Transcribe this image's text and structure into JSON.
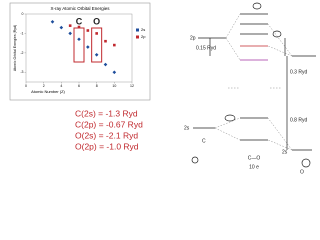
{
  "chart_data": {
    "type": "scatter",
    "title": "X-ray Atomic Orbital Energies",
    "x_label": "Atomic Number (Z)",
    "y_label": "Atomic Orbital Energies (Ryd)",
    "x": [
      3,
      4,
      5,
      6,
      7,
      8,
      9,
      10
    ],
    "series": [
      {
        "name": "2s",
        "color": "#1f4e9c",
        "values": [
          -0.4,
          -0.7,
          -1.0,
          -1.3,
          -1.7,
          -2.1,
          -2.6,
          -3.0
        ]
      },
      {
        "name": "2p",
        "color": "#c0282d",
        "values": [
          null,
          null,
          -0.6,
          -0.67,
          -0.85,
          -1.0,
          -1.4,
          -1.6
        ]
      }
    ],
    "annotations": [
      {
        "text": "C",
        "x": 6
      },
      {
        "text": "O",
        "x": 8
      }
    ],
    "xlim": [
      0,
      12
    ],
    "xticks": [
      0,
      2,
      4,
      6,
      8,
      10,
      12
    ],
    "ylim": [
      -3.5,
      0
    ],
    "yticks": [
      -3,
      -2,
      -1,
      0
    ],
    "legend": "right"
  },
  "energies": [
    "C(2s) = -1.3 Ryd",
    "C(2p) = -0.67 Ryd",
    "O(2s) = -2.1 Ryd",
    "O(2p) = -1.0 Ryd"
  ],
  "diagram": {
    "c_2p": "2p",
    "gap_2p": "0.15 Ryd",
    "gap_o": "0.3 Ryd",
    "gap_2s": "0.8 Ryd",
    "c_2s": "2s",
    "o_2s": "2s",
    "atom_c": "C",
    "atom_o": "O",
    "molecule": "C—O",
    "electrons": "10 e"
  }
}
